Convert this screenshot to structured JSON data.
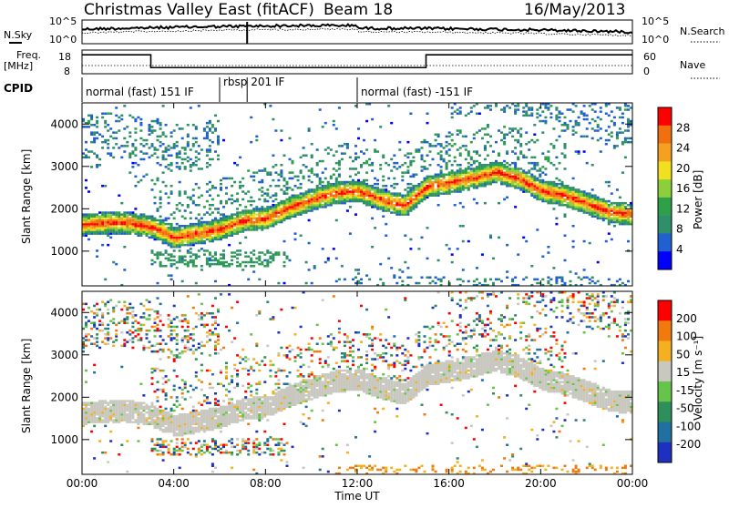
{
  "header": {
    "station": "Christmas Valley East (fitACF)",
    "beam": "Beam 18",
    "date": "16/May/2013"
  },
  "noise_panel": {
    "left_label": "N.Sky",
    "right_label": "N.Search",
    "left_ticks": [
      "10^5",
      "10^0"
    ],
    "right_ticks": [
      "10^5",
      "10^0"
    ]
  },
  "freq_panel": {
    "left_label_line1": "Freq.",
    "left_label_line2": "[MHz]",
    "right_label": "Nave",
    "left_ticks": [
      "18",
      "8"
    ],
    "right_ticks": [
      "60",
      "0"
    ],
    "freq_mhz_steps": [
      {
        "t": 0,
        "v": 16
      },
      {
        "t": 3.0,
        "v": 10.6
      },
      {
        "t": 15.0,
        "v": 16
      },
      {
        "t": 24,
        "v": 16
      }
    ]
  },
  "cpid": {
    "label": "CPID",
    "segments": [
      {
        "start": 0,
        "text": "normal (fast) 151 IF"
      },
      {
        "start": 6.0,
        "text": "rbsp 201 IF"
      },
      {
        "start": 12.0,
        "text": "normal (fast) -151 IF"
      }
    ],
    "markers": [
      0,
      6.0,
      7.2,
      12.0
    ]
  },
  "x_axis": {
    "label": "Time UT",
    "ticks": [
      "00:00",
      "04:00",
      "08:00",
      "12:00",
      "16:00",
      "20:00",
      "00:00"
    ],
    "range_hours": [
      0,
      24
    ]
  },
  "power_panel": {
    "ylabel": "Slant Range [km]",
    "yticks": [
      "4000",
      "3000",
      "2000",
      "1000"
    ],
    "colorbar_label": "Power [dB]",
    "colorbar_ticks": [
      "28",
      "24",
      "20",
      "16",
      "12",
      "8",
      "4"
    ],
    "colors": [
      "#0000ff",
      "#2060d0",
      "#2f8f6a",
      "#2fa04a",
      "#8ccf3a",
      "#f0e020",
      "#f5a020",
      "#f07010",
      "#ff0000"
    ]
  },
  "velocity_panel": {
    "ylabel": "Slant Range [km]",
    "yticks": [
      "4000",
      "3000",
      "2000",
      "1000"
    ],
    "colorbar_label": "Velocity [m s⁻¹]",
    "colorbar_ticks": [
      "200",
      "100",
      "50",
      "15",
      "-15",
      "-50",
      "-100",
      "-200"
    ],
    "colors": [
      "#1e30c0",
      "#2070a0",
      "#2e8f5a",
      "#66c44a",
      "#c8c8c0",
      "#f4b020",
      "#f07a10",
      "#ff0000"
    ]
  },
  "chart_data": {
    "type": "heatmap",
    "title": "Christmas Valley East (fitACF)",
    "xlabel": "Time UT",
    "ylabel": "Slant Range [km]",
    "xlim_hours": [
      0,
      24
    ],
    "ylim_km": [
      180,
      4500
    ],
    "power_echo_band_km": [
      [
        0,
        1600
      ],
      [
        1,
        1650
      ],
      [
        2,
        1650
      ],
      [
        3,
        1550
      ],
      [
        4,
        1300
      ],
      [
        5,
        1400
      ],
      [
        6,
        1500
      ],
      [
        7,
        1700
      ],
      [
        8,
        1750
      ],
      [
        9,
        2000
      ],
      [
        10,
        2200
      ],
      [
        11,
        2350
      ],
      [
        12,
        2400
      ],
      [
        13,
        2200
      ],
      [
        14,
        2050
      ],
      [
        15,
        2500
      ],
      [
        16,
        2600
      ],
      [
        17,
        2700
      ],
      [
        18,
        2850
      ],
      [
        19,
        2700
      ],
      [
        20,
        2400
      ],
      [
        21,
        2300
      ],
      [
        22,
        2100
      ],
      [
        23,
        1900
      ],
      [
        24,
        1850
      ]
    ],
    "power_levels_db": [
      4,
      8,
      12,
      16,
      20,
      24,
      28
    ],
    "velocity_levels_ms": [
      -200,
      -100,
      -50,
      -15,
      15,
      50,
      100,
      200
    ]
  }
}
